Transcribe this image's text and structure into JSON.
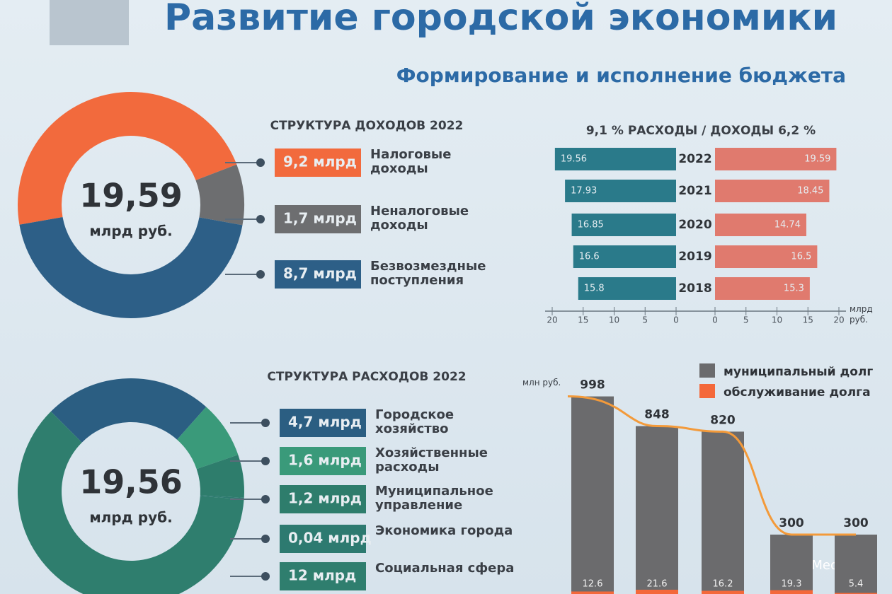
{
  "header": {
    "title": "Развитие городской экономики",
    "subtitle": "Формирование и исполнение бюджета"
  },
  "watermark": "AmurMedia.ru",
  "chart_data": [
    {
      "type": "donut",
      "title": "СТРУКТУРА ДОХОДОВ 2022",
      "center_value": "19,59",
      "center_unit": "млрд руб.",
      "categories": [
        "Налоговые доходы",
        "Неналоговые доходы",
        "Безвозмездные поступления"
      ],
      "values": [
        9.2,
        1.7,
        8.7
      ],
      "value_labels": [
        "9,2 млрд",
        "1,7 млрд",
        "8,7 млрд"
      ],
      "colors": [
        "#f26a3d",
        "#6d6e70",
        "#2d5f87"
      ]
    },
    {
      "type": "butterfly",
      "title": "9,1 % РАСХОДЫ / ДОХОДЫ 6,2 %",
      "categories": [
        "2022",
        "2021",
        "2020",
        "2019",
        "2018"
      ],
      "series": [
        {
          "color": "#2a7a8a",
          "values": [
            19.56,
            17.93,
            16.85,
            16.6,
            15.8
          ]
        },
        {
          "color": "#e07a6e",
          "values": [
            19.59,
            18.45,
            14.74,
            16.5,
            15.3
          ]
        }
      ],
      "xlim": [
        0,
        20
      ],
      "xticks": [
        0,
        5,
        10,
        15,
        20
      ],
      "x_unit": "млрд руб."
    },
    {
      "type": "donut",
      "title": "СТРУКТУРА РАСХОДОВ 2022",
      "center_value": "19,56",
      "center_unit": "млрд руб.",
      "categories": [
        "Городское хозяйство",
        "Хозяйственные расходы",
        "Муниципальное управление",
        "Экономика города",
        "Социальная сфера"
      ],
      "values": [
        4.7,
        1.6,
        1.2,
        0.04,
        12
      ],
      "value_labels": [
        "4,7 млрд",
        "1,6 млрд",
        "1,2 млрд",
        "0,04 млрд",
        "12 млрд"
      ],
      "colors": [
        "#2b5e82",
        "#3a9a7a",
        "#2e7d6c",
        "#2d7a70",
        "#2f7e6e"
      ]
    },
    {
      "type": "bar",
      "y_unit": "млн руб.",
      "categories": [
        null,
        null,
        null,
        null,
        null
      ],
      "series": [
        {
          "name": "муниципальный долг",
          "color": "#6b6b6d",
          "values": [
            998,
            848,
            820,
            300,
            300
          ]
        },
        {
          "name": "обслуживание долга",
          "color": "#f4683a",
          "values": [
            12.6,
            21.6,
            16.2,
            19.3,
            5.4
          ]
        }
      ],
      "ylim": [
        0,
        1000
      ],
      "legend": "top-right"
    }
  ]
}
